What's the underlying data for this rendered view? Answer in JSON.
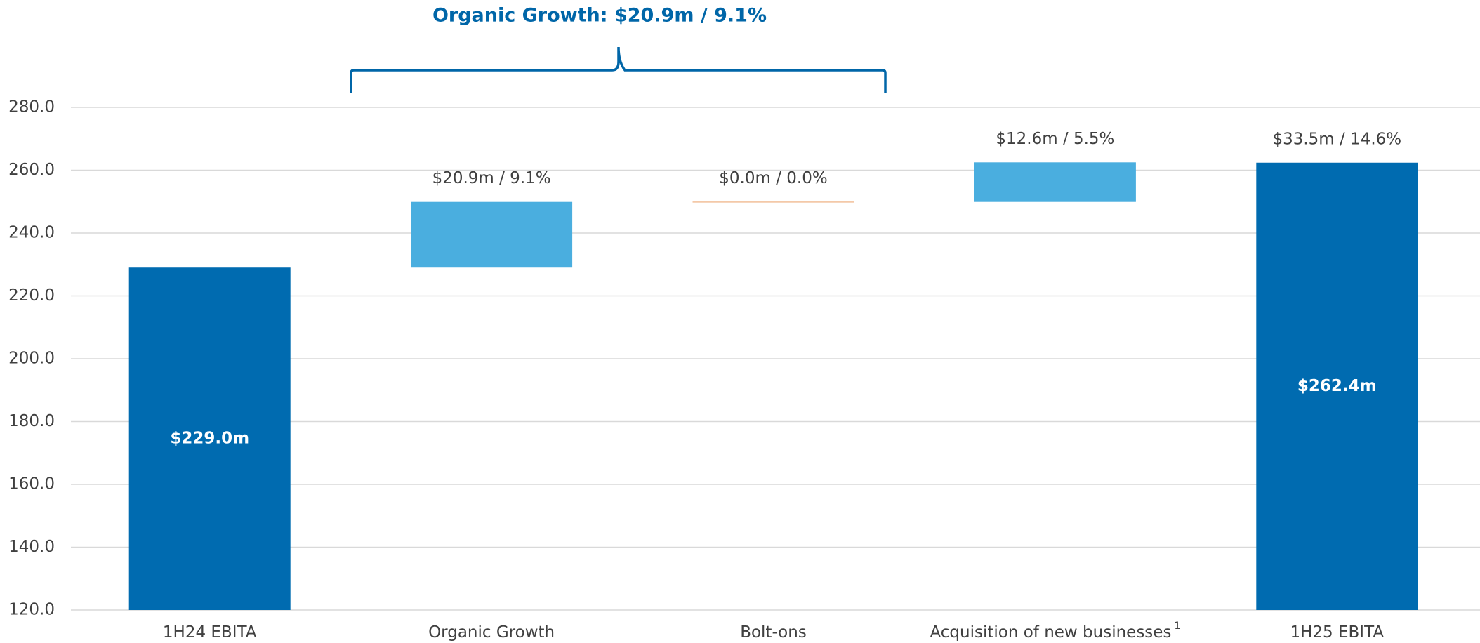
{
  "chart_data": {
    "type": "waterfall",
    "title": "Organic Growth: $20.9m / 9.1%",
    "categories": [
      "1H24 EBITA",
      "Organic Growth",
      "Bolt-ons",
      "Acquisition of new businesses",
      "1H25 EBITA"
    ],
    "category_superscripts": [
      null,
      null,
      null,
      "1",
      null
    ],
    "measures": [
      "total",
      "relative",
      "relative",
      "relative",
      "total"
    ],
    "values": [
      229.0,
      20.9,
      0.0,
      12.6,
      262.4
    ],
    "value_labels": [
      "$229.0m",
      "$20.9m / 9.1%",
      "$0.0m / 0.0%",
      "$12.6m / 5.5%",
      "$262.4m"
    ],
    "annotations": [
      {
        "category": 4,
        "text": "$33.5m / 14.6%"
      }
    ],
    "colors": {
      "total": "#006bb0",
      "relative": "#4aaedf",
      "zero": "#f4c9a8"
    },
    "ylim": [
      120,
      280
    ],
    "yticks": [
      {
        "value": 120,
        "label": "120.0"
      },
      {
        "value": 140,
        "label": "140.0"
      },
      {
        "value": 160,
        "label": "160.0"
      },
      {
        "value": 180,
        "label": "180.0"
      },
      {
        "value": 200,
        "label": "200.0"
      },
      {
        "value": 220,
        "label": "220.0"
      },
      {
        "value": 240,
        "label": "240.0"
      },
      {
        "value": 260,
        "label": "260.0"
      },
      {
        "value": 280,
        "label": "280.0"
      }
    ],
    "grid": true
  }
}
